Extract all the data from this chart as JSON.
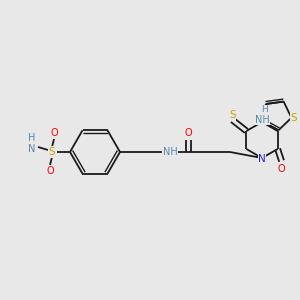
{
  "bg_color": "#e8e8e8",
  "fig_size": [
    3.0,
    3.0
  ],
  "dpi": 100,
  "bond_color": "#1a1a1a",
  "atom_colors": {
    "N": "#2222cc",
    "O": "#ff0000",
    "S": "#c8a000",
    "NH": "#5588aa",
    "H": "#5588aa"
  }
}
